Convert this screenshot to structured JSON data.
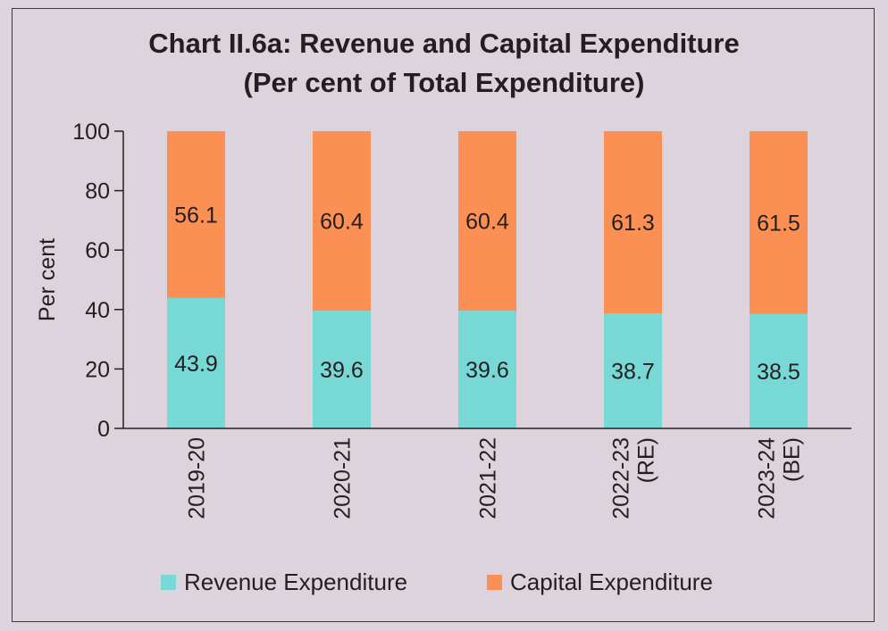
{
  "chart_data": {
    "type": "bar",
    "stacked": true,
    "title": "Chart II.6a: Revenue and Capital Expenditure",
    "subtitle": "(Per cent of Total Expenditure)",
    "xlabel": "",
    "ylabel": "Per cent",
    "ylim": [
      0,
      100
    ],
    "yticks": [
      0,
      20,
      40,
      60,
      80,
      100
    ],
    "categories": [
      [
        "2019-20"
      ],
      [
        "2020-21"
      ],
      [
        "2021-22"
      ],
      [
        "2022-23",
        "(RE)"
      ],
      [
        "2023-24",
        "(BE)"
      ]
    ],
    "series": [
      {
        "name": "Revenue Expenditure",
        "color": "#77d8d6",
        "values": [
          43.9,
          39.6,
          39.6,
          38.7,
          38.5
        ]
      },
      {
        "name": "Capital Expenditure",
        "color": "#fc8f54",
        "values": [
          56.1,
          60.4,
          60.4,
          61.3,
          61.5
        ]
      }
    ],
    "data_labels": true,
    "legend": "bottom"
  }
}
